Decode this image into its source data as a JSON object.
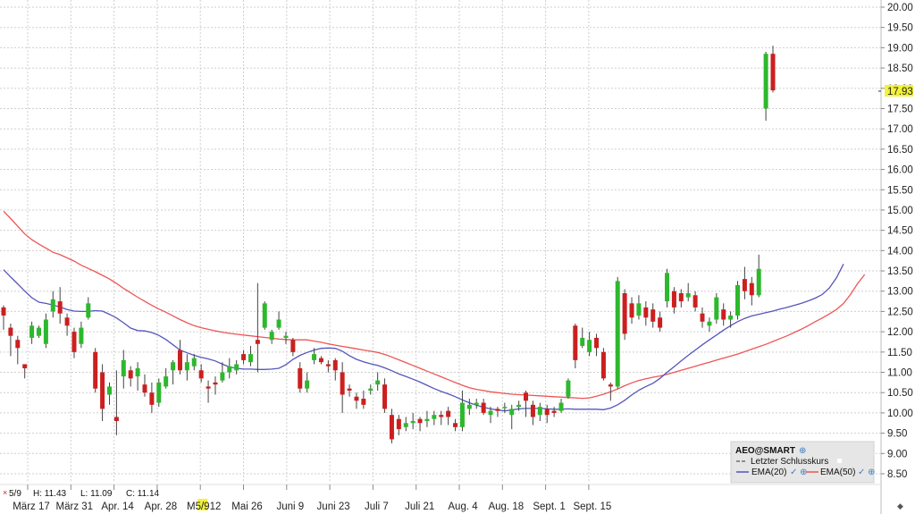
{
  "chart_data": {
    "type": "candlestick",
    "symbol": "AEO@SMART",
    "x_labels": [
      "März 17",
      "März 31",
      "Apr. 14",
      "Apr. 28",
      "M5/912",
      "Mai 26",
      "Juni 9",
      "Juni 23",
      "Juli 7",
      "Juli 21",
      "Aug. 4",
      "Aug. 18",
      "Sept. 1",
      "Sept. 15"
    ],
    "y_ticks": [
      "20.00",
      "19.50",
      "19.00",
      "18.50",
      "18.00",
      "17.50",
      "17.00",
      "16.50",
      "16.00",
      "15.50",
      "15.00",
      "14.50",
      "14.00",
      "13.50",
      "13.00",
      "12.50",
      "12.00",
      "11.50",
      "11.00",
      "10.50",
      "10.00",
      "9.50",
      "9.00",
      "8.50"
    ],
    "ylim": [
      8.5,
      20.0
    ],
    "last_price": "17.93",
    "ohlc_readout": {
      "date": "5/9",
      "high": "H: 11.43",
      "low": "L: 11.09",
      "close": "C: 11.14"
    },
    "legend": {
      "title": "AEO@SMART",
      "last_close_label": "Letzter Schlusskurs",
      "ema20_label": "EMA(20)",
      "ema50_label": "EMA(50)"
    },
    "colors": {
      "up": "#2db82d",
      "down": "#cc1f1f",
      "ema20": "#5555bb",
      "ema50": "#ee5555",
      "price_highlight": "#f2f23a"
    },
    "candles": [
      [
        12.6,
        12.4,
        12.65,
        12.05
      ],
      [
        12.1,
        11.9,
        12.2,
        11.4
      ],
      [
        11.8,
        11.6,
        11.9,
        11.2
      ],
      [
        11.2,
        11.1,
        11.2,
        10.85
      ],
      [
        11.85,
        12.15,
        12.25,
        11.7
      ],
      [
        11.9,
        12.1,
        12.15,
        11.85
      ],
      [
        11.7,
        12.3,
        12.45,
        11.6
      ],
      [
        12.5,
        12.8,
        13.0,
        12.35
      ],
      [
        12.75,
        12.45,
        13.1,
        12.2
      ],
      [
        12.35,
        12.15,
        12.45,
        11.9
      ],
      [
        12.0,
        11.5,
        12.1,
        11.35
      ],
      [
        11.7,
        12.1,
        12.25,
        11.6
      ],
      [
        12.35,
        12.7,
        12.85,
        12.3
      ],
      [
        11.5,
        10.6,
        11.6,
        10.5
      ],
      [
        11.0,
        10.1,
        11.2,
        9.8
      ],
      [
        10.45,
        10.65,
        10.75,
        10.2
      ],
      [
        9.9,
        9.8,
        11.05,
        9.45
      ],
      [
        10.9,
        11.3,
        11.55,
        10.6
      ],
      [
        11.05,
        10.85,
        11.15,
        10.65
      ],
      [
        10.9,
        11.1,
        11.25,
        10.55
      ],
      [
        10.7,
        10.5,
        10.95,
        10.4
      ],
      [
        10.5,
        10.2,
        10.75,
        10.0
      ],
      [
        10.25,
        10.75,
        10.85,
        10.15
      ],
      [
        10.65,
        10.9,
        11.1,
        10.6
      ],
      [
        11.05,
        11.25,
        11.3,
        10.7
      ],
      [
        11.55,
        11.05,
        11.8,
        10.95
      ],
      [
        11.05,
        11.25,
        11.45,
        10.8
      ],
      [
        11.15,
        11.35,
        11.45,
        11.05
      ],
      [
        11.05,
        10.85,
        11.2,
        10.75
      ],
      [
        10.65,
        10.6,
        10.8,
        10.25
      ],
      [
        10.75,
        10.7,
        10.9,
        10.45
      ],
      [
        10.8,
        11.0,
        11.25,
        10.75
      ],
      [
        11.0,
        11.15,
        11.35,
        10.85
      ],
      [
        11.05,
        11.2,
        11.3,
        10.95
      ],
      [
        11.45,
        11.3,
        11.55,
        11.2
      ],
      [
        11.25,
        11.45,
        11.65,
        11.15
      ],
      [
        11.8,
        11.7,
        13.2,
        11.0
      ],
      [
        12.1,
        12.7,
        12.75,
        12.05
      ],
      [
        11.8,
        12.0,
        12.05,
        11.7
      ],
      [
        12.1,
        12.3,
        12.5,
        12.05
      ],
      [
        11.85,
        11.9,
        12.0,
        11.7
      ],
      [
        11.8,
        11.5,
        11.85,
        11.4
      ],
      [
        11.1,
        10.6,
        11.25,
        10.5
      ],
      [
        10.6,
        10.8,
        11.0,
        10.5
      ],
      [
        11.3,
        11.45,
        11.6,
        11.2
      ],
      [
        11.35,
        11.25,
        11.4,
        11.2
      ],
      [
        11.2,
        11.15,
        11.3,
        11.0
      ],
      [
        11.3,
        11.05,
        11.35,
        10.8
      ],
      [
        11.0,
        10.45,
        11.25,
        10.0
      ],
      [
        10.6,
        10.55,
        10.7,
        10.4
      ],
      [
        10.4,
        10.3,
        10.5,
        10.1
      ],
      [
        10.35,
        10.2,
        10.55,
        10.1
      ],
      [
        10.55,
        10.6,
        10.7,
        10.45
      ],
      [
        10.7,
        10.8,
        11.0,
        10.55
      ],
      [
        10.7,
        10.1,
        10.85,
        10.0
      ],
      [
        9.95,
        9.35,
        10.1,
        9.25
      ],
      [
        9.85,
        9.6,
        9.95,
        9.45
      ],
      [
        9.65,
        9.75,
        9.9,
        9.55
      ],
      [
        9.75,
        9.8,
        10.0,
        9.6
      ],
      [
        9.85,
        9.75,
        9.9,
        9.55
      ],
      [
        9.8,
        9.85,
        10.05,
        9.65
      ],
      [
        9.85,
        9.95,
        10.05,
        9.7
      ],
      [
        9.95,
        9.9,
        10.05,
        9.7
      ],
      [
        10.05,
        9.9,
        10.15,
        9.7
      ],
      [
        9.75,
        9.65,
        9.85,
        9.55
      ],
      [
        9.65,
        10.25,
        10.55,
        9.55
      ],
      [
        10.1,
        10.2,
        10.35,
        9.95
      ],
      [
        10.2,
        10.25,
        10.35,
        10.1
      ],
      [
        10.25,
        10.0,
        10.35,
        9.95
      ],
      [
        9.95,
        10.05,
        10.15,
        9.75
      ],
      [
        10.1,
        10.05,
        10.15,
        9.9
      ],
      [
        10.15,
        10.15,
        10.25,
        10.0
      ],
      [
        9.95,
        10.1,
        10.2,
        9.6
      ],
      [
        10.15,
        10.2,
        10.3,
        10.05
      ],
      [
        10.5,
        10.3,
        10.55,
        9.9
      ],
      [
        10.2,
        9.9,
        10.3,
        9.7
      ],
      [
        9.95,
        10.15,
        10.25,
        9.8
      ],
      [
        10.1,
        9.95,
        10.2,
        9.75
      ],
      [
        10.05,
        10.0,
        10.15,
        9.9
      ],
      [
        10.05,
        10.25,
        10.35,
        10.0
      ],
      [
        10.4,
        10.8,
        10.85,
        10.35
      ],
      [
        12.15,
        11.3,
        12.2,
        11.1
      ],
      [
        11.65,
        11.85,
        12.1,
        11.6
      ],
      [
        11.5,
        11.8,
        12.0,
        11.4
      ],
      [
        11.85,
        11.6,
        11.95,
        11.4
      ],
      [
        11.5,
        10.85,
        11.6,
        10.8
      ],
      [
        10.7,
        10.65,
        10.75,
        10.3
      ],
      [
        10.65,
        13.25,
        13.35,
        10.6
      ],
      [
        12.95,
        11.95,
        13.05,
        11.8
      ],
      [
        12.7,
        12.35,
        12.85,
        12.2
      ],
      [
        12.4,
        12.7,
        12.9,
        12.3
      ],
      [
        12.6,
        12.35,
        12.75,
        12.15
      ],
      [
        12.55,
        12.25,
        12.7,
        12.1
      ],
      [
        12.35,
        12.1,
        12.5,
        12.0
      ],
      [
        12.75,
        13.45,
        13.55,
        12.6
      ],
      [
        13.0,
        12.6,
        13.1,
        12.45
      ],
      [
        12.95,
        12.75,
        13.05,
        12.6
      ],
      [
        12.85,
        12.95,
        13.2,
        12.75
      ],
      [
        12.9,
        12.6,
        13.0,
        12.5
      ],
      [
        12.45,
        12.25,
        12.6,
        12.1
      ],
      [
        12.15,
        12.25,
        12.35,
        12.0
      ],
      [
        12.3,
        12.85,
        12.95,
        12.2
      ],
      [
        12.55,
        12.3,
        12.7,
        12.15
      ],
      [
        12.3,
        12.4,
        12.5,
        12.1
      ],
      [
        12.4,
        13.15,
        13.25,
        12.3
      ],
      [
        13.3,
        13.0,
        13.6,
        12.8
      ],
      [
        13.2,
        12.9,
        13.35,
        12.65
      ],
      [
        12.9,
        13.55,
        13.9,
        12.85
      ],
      [
        17.5,
        18.85,
        18.9,
        17.2
      ],
      [
        18.85,
        17.95,
        19.05,
        17.9
      ]
    ],
    "ema20": [
      13.53,
      13.35,
      13.18,
      13.0,
      12.84,
      12.73,
      12.7,
      12.66,
      12.61,
      12.55,
      12.51,
      12.5,
      12.5,
      12.52,
      12.51,
      12.43,
      12.34,
      12.22,
      12.09,
      12.03,
      12.02,
      11.98,
      11.91,
      11.81,
      11.68,
      11.55,
      11.48,
      11.42,
      11.37,
      11.33,
      11.28,
      11.2,
      11.13,
      11.1,
      11.08,
      11.08,
      11.07,
      11.07,
      11.08,
      11.1,
      11.19,
      11.32,
      11.42,
      11.49,
      11.55,
      11.59,
      11.6,
      11.59,
      11.52,
      11.41,
      11.32,
      11.26,
      11.21,
      11.17,
      11.11,
      11.04,
      10.96,
      10.9,
      10.83,
      10.76,
      10.68,
      10.6,
      10.53,
      10.47,
      10.4,
      10.32,
      10.25,
      10.19,
      10.14,
      10.1,
      10.07,
      10.05,
      10.07,
      10.1,
      10.11,
      10.11,
      10.11,
      10.1,
      10.09,
      10.09,
      10.1,
      10.09,
      10.09,
      10.09,
      10.09,
      10.08,
      10.12,
      10.2,
      10.31,
      10.44,
      10.56,
      10.65,
      10.73,
      10.85,
      11.0,
      11.14,
      11.28,
      11.42,
      11.55,
      11.68,
      11.8,
      11.92,
      12.04,
      12.15,
      12.25,
      12.33,
      12.39,
      12.43,
      12.47,
      12.51,
      12.56,
      12.6,
      12.65,
      12.7,
      12.76,
      12.83,
      12.92,
      13.08,
      13.33,
      13.67
    ],
    "ema50": [
      14.97,
      14.79,
      14.6,
      14.41,
      14.27,
      14.16,
      14.06,
      13.96,
      13.9,
      13.82,
      13.74,
      13.64,
      13.56,
      13.48,
      13.39,
      13.3,
      13.19,
      13.07,
      12.96,
      12.85,
      12.75,
      12.65,
      12.56,
      12.48,
      12.39,
      12.3,
      12.22,
      12.15,
      12.1,
      12.06,
      12.02,
      11.99,
      11.96,
      11.94,
      11.92,
      11.9,
      11.88,
      11.86,
      11.84,
      11.82,
      11.81,
      11.8,
      11.8,
      11.8,
      11.77,
      11.74,
      11.7,
      11.67,
      11.64,
      11.61,
      11.58,
      11.55,
      11.52,
      11.49,
      11.44,
      11.38,
      11.31,
      11.24,
      11.17,
      11.1,
      11.03,
      10.96,
      10.89,
      10.82,
      10.75,
      10.68,
      10.62,
      10.58,
      10.55,
      10.52,
      10.5,
      10.48,
      10.46,
      10.45,
      10.44,
      10.43,
      10.42,
      10.41,
      10.4,
      10.39,
      10.38,
      10.37,
      10.36,
      10.37,
      10.41,
      10.46,
      10.52,
      10.59,
      10.67,
      10.74,
      10.8,
      10.84,
      10.88,
      10.91,
      10.95,
      11.0,
      11.05,
      11.1,
      11.15,
      11.2,
      11.25,
      11.3,
      11.35,
      11.4,
      11.45,
      11.51,
      11.57,
      11.63,
      11.69,
      11.76,
      11.83,
      11.9,
      11.98,
      12.06,
      12.15,
      12.25,
      12.34,
      12.44,
      12.55,
      12.7,
      12.92,
      13.19,
      13.41
    ]
  }
}
